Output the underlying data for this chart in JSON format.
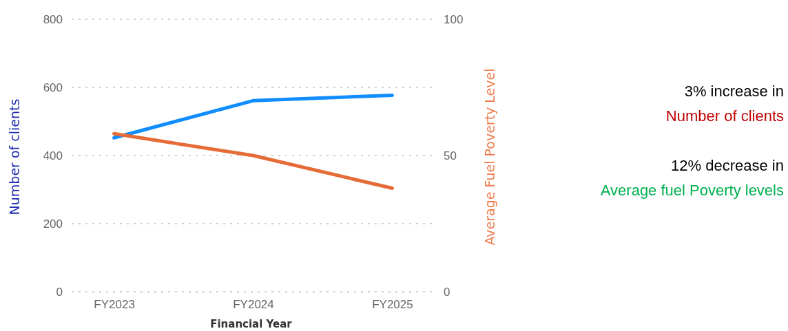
{
  "chart_data": {
    "type": "line",
    "categories": [
      "FY2023",
      "FY2024",
      "FY2025"
    ],
    "series": [
      {
        "color": "#118dff",
        "values": [
          452,
          561,
          577
        ]
      },
      {
        "color": "#e66c37",
        "values": [
          58,
          50,
          38
        ],
        "axis": "y2"
      }
    ],
    "xlabel": "Financial Year",
    "ylabel": "Number of clients",
    "y2label": "Average Fuel Poverty Level",
    "ylim": [
      0,
      800
    ],
    "yticks": [
      0,
      200,
      400,
      600,
      800
    ],
    "y2lim": [
      0,
      100
    ],
    "y2ticks": [
      0,
      50,
      100
    ],
    "grid": "y",
    "legend": false,
    "marker": "none",
    "line_style": "solid",
    "annotations": [
      "3% increase in",
      "Number of clients",
      "12% decrease in",
      "Average fuel Poverty levels"
    ]
  }
}
